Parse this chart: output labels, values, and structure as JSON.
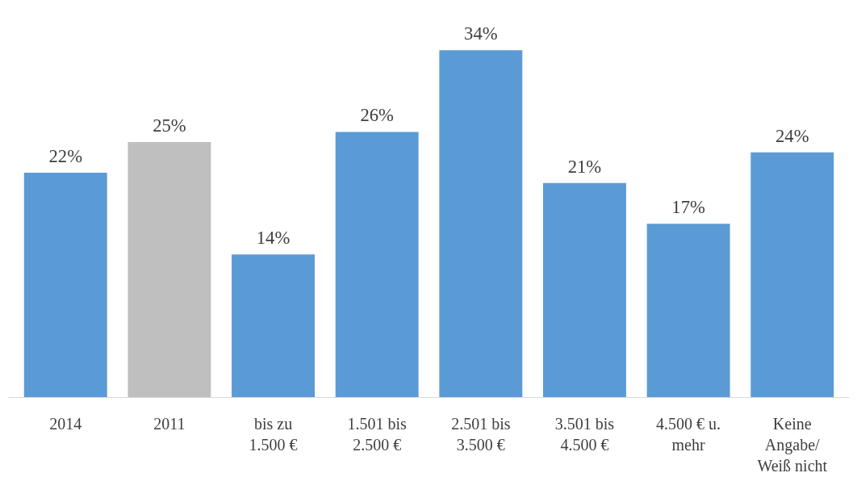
{
  "chart_data": {
    "type": "bar",
    "categories": [
      "2014",
      "2011",
      "bis zu 1.500 €",
      "1.501 bis 2.500 €",
      "2.501 bis 3.500 €",
      "3.501 bis 4.500 €",
      "4.500 € u. mehr",
      "Keine Angabe/ Weiß nicht"
    ],
    "values": [
      22,
      25,
      14,
      26,
      34,
      21,
      17,
      24
    ],
    "colors": [
      "#5b9bd5",
      "#bfbfbf",
      "#5b9bd5",
      "#5b9bd5",
      "#5b9bd5",
      "#5b9bd5",
      "#5b9bd5",
      "#5b9bd5"
    ],
    "value_labels": [
      "22%",
      "25%",
      "14%",
      "26%",
      "34%",
      "21%",
      "17%",
      "24%"
    ],
    "grid": false
  }
}
